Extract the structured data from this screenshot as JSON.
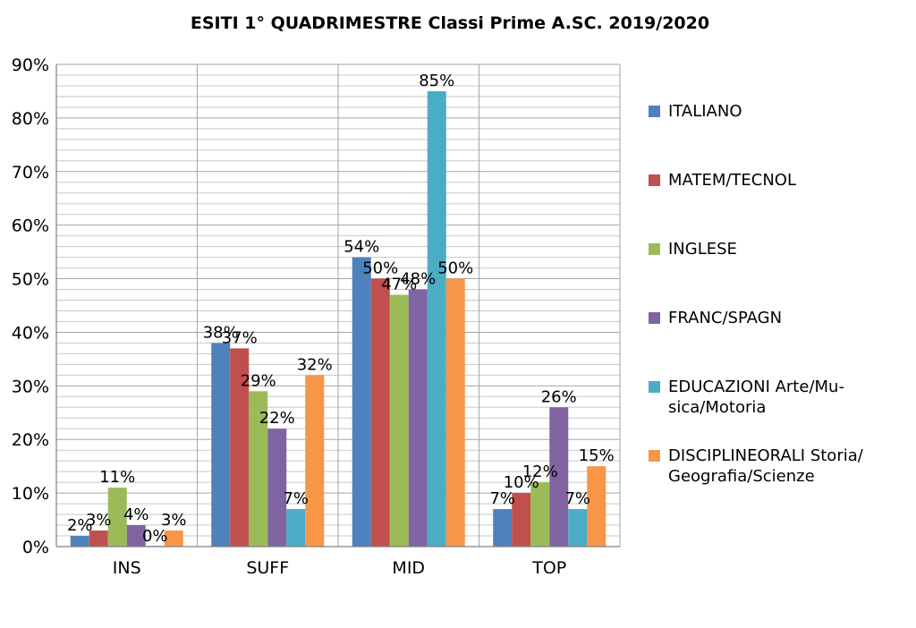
{
  "chart_data": {
    "type": "bar",
    "title": "ESITI 1° QUADRIMESTRE Classi Prime A.SC. 2019/2020",
    "xlabel": "",
    "ylabel": "",
    "categories": [
      "INS",
      "SUFF",
      "MID",
      "TOP"
    ],
    "ylim": [
      0,
      90
    ],
    "yticks": [
      "0%",
      "10%",
      "20%",
      "30%",
      "40%",
      "50%",
      "60%",
      "70%",
      "80%",
      "90%"
    ],
    "minor_grid_step": 2,
    "grid": true,
    "legend_position": "right",
    "series": [
      {
        "name": "ITALIANO",
        "legend_lines": [
          "ITALIANO"
        ],
        "color": "#4F81BD",
        "values": [
          2,
          38,
          54,
          7
        ],
        "labels": [
          "2%",
          "38%",
          "54%",
          "7%"
        ]
      },
      {
        "name": "MATEM/TECNOL",
        "legend_lines": [
          "MATEM/TECNOL"
        ],
        "color": "#C0504D",
        "values": [
          3,
          37,
          50,
          10
        ],
        "labels": [
          "3%",
          "37%",
          "50%",
          "10%"
        ]
      },
      {
        "name": "INGLESE",
        "legend_lines": [
          "INGLESE"
        ],
        "color": "#9BBB59",
        "values": [
          11,
          29,
          47,
          12
        ],
        "labels": [
          "11%",
          "29%",
          "47%",
          "12%"
        ]
      },
      {
        "name": "FRANC/SPAGN",
        "legend_lines": [
          "FRANC/SPAGN"
        ],
        "color": "#8064A2",
        "values": [
          4,
          22,
          48,
          26
        ],
        "labels": [
          "4%",
          "22%",
          "48%",
          "26%"
        ]
      },
      {
        "name": "EDUCAZIONI Arte/Musica/Motoria",
        "legend_lines": [
          "EDUCAZIONI Arte/Mu-",
          "sica/Motoria"
        ],
        "color": "#4BACC6",
        "values": [
          0,
          7,
          85,
          7
        ],
        "labels": [
          "0%",
          "7%",
          "85%",
          "7%"
        ]
      },
      {
        "name": "DISCIPLINEORALI Storia/Geografia/Scienze",
        "legend_lines": [
          "DISCIPLINEORALI Storia/",
          "Geografia/Scienze"
        ],
        "color": "#F79646",
        "values": [
          3,
          32,
          50,
          15
        ],
        "labels": [
          "3%",
          "32%",
          "50%",
          "15%"
        ]
      }
    ]
  }
}
